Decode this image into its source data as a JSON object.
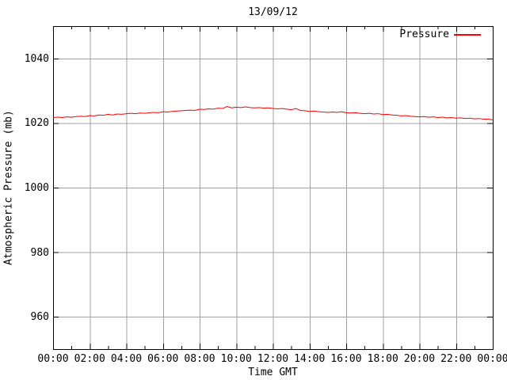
{
  "window": {
    "background_color": "#ffffff",
    "text_color": "#000000"
  },
  "chart_data": {
    "type": "line",
    "title": "13/09/12",
    "xlabel": "Time GMT",
    "ylabel": "Atmospheric Pressure (mb)",
    "xlim_hours": [
      0,
      24
    ],
    "ylim": [
      950,
      1050
    ],
    "grid": "on",
    "grid_color": "#a0a0a0",
    "border_color": "#000000",
    "legend": {
      "position": "top-right-inside",
      "entries": [
        "Pressure"
      ]
    },
    "x_ticks": {
      "hours": [
        0,
        2,
        4,
        6,
        8,
        10,
        12,
        14,
        16,
        18,
        20,
        22,
        24
      ],
      "labels": [
        "00:00",
        "02:00",
        "04:00",
        "06:00",
        "08:00",
        "10:00",
        "12:00",
        "14:00",
        "16:00",
        "18:00",
        "20:00",
        "22:00",
        "00:00"
      ]
    },
    "x_minor_tick_every_hours": 1,
    "y_ticks": {
      "values": [
        960,
        980,
        1000,
        1020,
        1040
      ],
      "labels": [
        "960",
        "980",
        "1000",
        "1020",
        "1040"
      ]
    },
    "series": [
      {
        "name": "Pressure",
        "color": "#ff0000",
        "x_start_hour": 0,
        "x_step_hours": 0.25,
        "values": [
          1021.7,
          1021.8,
          1021.7,
          1021.9,
          1021.8,
          1022.0,
          1022.1,
          1022.0,
          1022.3,
          1022.2,
          1022.5,
          1022.4,
          1022.7,
          1022.5,
          1022.8,
          1022.7,
          1022.9,
          1023.0,
          1022.9,
          1023.1,
          1023.0,
          1023.2,
          1023.3,
          1023.2,
          1023.5,
          1023.4,
          1023.6,
          1023.7,
          1023.8,
          1023.9,
          1024.0,
          1023.9,
          1024.3,
          1024.2,
          1024.4,
          1024.3,
          1024.6,
          1024.5,
          1025.1,
          1024.7,
          1024.9,
          1024.8,
          1025.0,
          1024.8,
          1024.7,
          1024.8,
          1024.6,
          1024.7,
          1024.5,
          1024.4,
          1024.5,
          1024.3,
          1024.1,
          1024.5,
          1023.9,
          1023.8,
          1023.6,
          1023.7,
          1023.5,
          1023.4,
          1023.3,
          1023.4,
          1023.3,
          1023.5,
          1023.2,
          1023.1,
          1023.2,
          1023.0,
          1022.9,
          1023.0,
          1022.8,
          1022.9,
          1022.6,
          1022.7,
          1022.5,
          1022.4,
          1022.2,
          1022.3,
          1022.1,
          1022.0,
          1021.9,
          1022.0,
          1021.8,
          1021.9,
          1021.7,
          1021.8,
          1021.6,
          1021.7,
          1021.5,
          1021.6,
          1021.4,
          1021.5,
          1021.3,
          1021.4,
          1021.2,
          1021.2,
          1021.0
        ]
      }
    ]
  }
}
